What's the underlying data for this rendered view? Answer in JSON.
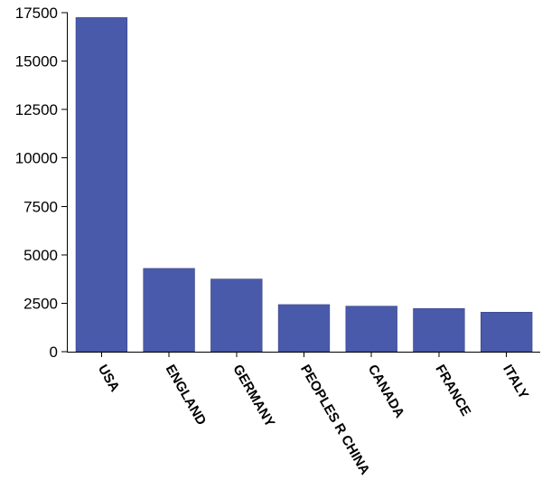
{
  "chart_data": {
    "type": "bar",
    "categories": [
      "USA",
      "ENGLAND",
      "GERMANY",
      "PEOPLES R CHINA",
      "CANADA",
      "FRANCE",
      "ITALY"
    ],
    "values": [
      17250,
      4300,
      3750,
      2430,
      2350,
      2230,
      2040
    ],
    "title": "",
    "xlabel": "",
    "ylabel": "",
    "ylim": [
      0,
      17500
    ],
    "yticks": [
      0,
      2500,
      5000,
      7500,
      10000,
      12500,
      15000,
      17500
    ],
    "bar_color": "#4a5aab",
    "grid": false,
    "legend": "none"
  }
}
